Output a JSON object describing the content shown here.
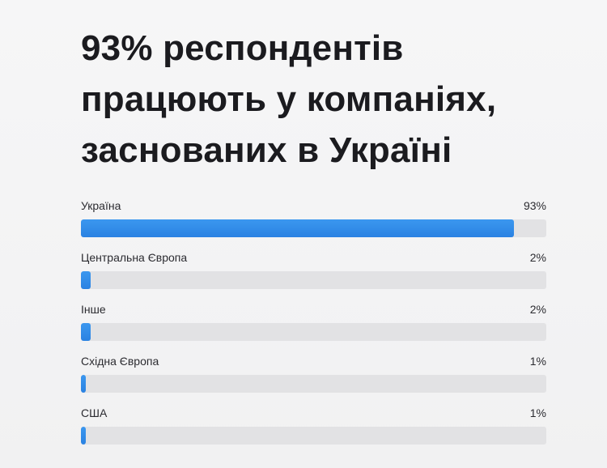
{
  "chart_data": {
    "type": "bar",
    "orientation": "horizontal",
    "title": "93% респондентів працюють у компаніях, заснованих в Україні",
    "title_lines": [
      "93% респондентів",
      "працюють у компаніях,",
      "заснованих в Україні"
    ],
    "categories": [
      "Україна",
      "Центральна Європа",
      "Інше",
      "Східна Європа",
      "США"
    ],
    "values": [
      93,
      2,
      2,
      1,
      1
    ],
    "value_labels": [
      "93%",
      "2%",
      "2%",
      "1%",
      "1%"
    ],
    "xlim": [
      0,
      100
    ],
    "unit": "%",
    "bar_color": "#2f8be8",
    "track_color": "#e2e2e4",
    "grid": false,
    "legend": "none"
  }
}
